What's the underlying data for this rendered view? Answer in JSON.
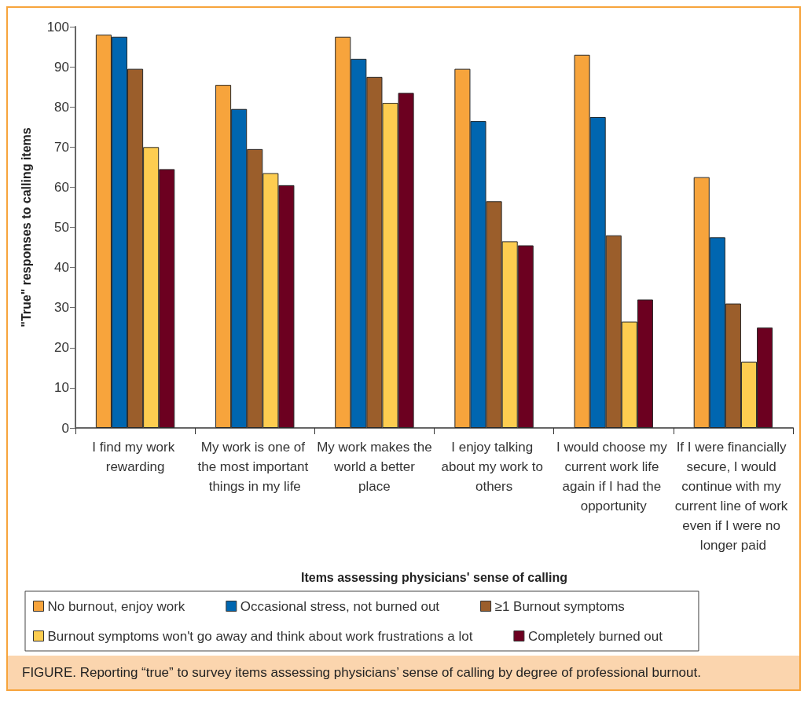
{
  "chart_data": {
    "type": "bar",
    "xlabel": "Items assessing physicians' sense of calling",
    "ylabel": "\"True\" responses to calling items",
    "categories": [
      "I find my work rewarding",
      "My work is one of the most important things in my life",
      "My work makes the world a better place",
      "I enjoy talking about my work to others",
      "I would choose my current work life again if I had the opportunity",
      "If I were financially secure, I would continue with my current line of work even if I were no longer paid"
    ],
    "series": [
      {
        "name": "No burnout, enjoy work",
        "color": "#f7a43c",
        "values": [
          98,
          85.5,
          97.5,
          89.5,
          93,
          62.5
        ]
      },
      {
        "name": "Occasional stress, not burned out",
        "color": "#0066b0",
        "values": [
          97.5,
          79.5,
          92,
          76.5,
          77.5,
          47.5
        ]
      },
      {
        "name": "≥1 Burnout symptoms",
        "color": "#9b5e2b",
        "values": [
          89.5,
          69.5,
          87.5,
          56.5,
          48,
          31
        ]
      },
      {
        "name": "Burnout symptoms won't go away and think about work frustrations a lot",
        "color": "#fdcd50",
        "values": [
          70,
          63.5,
          81,
          46.5,
          26.5,
          16.5
        ]
      },
      {
        "name": "Completely burned out",
        "color": "#6c0020",
        "values": [
          64.5,
          60.5,
          83.5,
          45.5,
          32,
          25
        ]
      }
    ],
    "ylim": [
      0,
      100
    ],
    "yticks": [
      0,
      10,
      20,
      30,
      40,
      50,
      60,
      70,
      80,
      90,
      100
    ],
    "grid": false,
    "legend": "bottom",
    "annotations": [
      "FIGURE. Reporting “true” to survey items assessing physicians’ sense of calling by degree of professional burnout."
    ]
  }
}
